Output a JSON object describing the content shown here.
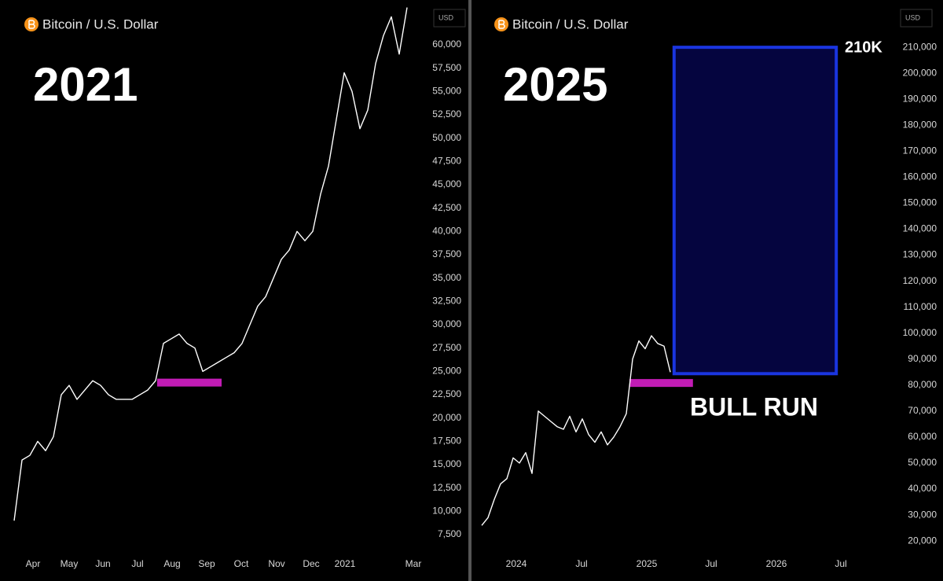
{
  "chart_data": [
    {
      "type": "line",
      "title": "Bitcoin / U.S. Dollar",
      "label": "2021",
      "currency": "USD",
      "series": [
        {
          "color": "#ffffff",
          "values": [
            9000,
            15500,
            16000,
            17500,
            16500,
            18000,
            22500,
            23500,
            22000,
            23000,
            24000,
            23500,
            22500,
            22000,
            22000,
            22000,
            22500,
            23000,
            24000,
            28000,
            28500,
            29000,
            28000,
            27500,
            25000,
            25500,
            26000,
            26500,
            27000,
            28000,
            30000,
            32000,
            33000,
            35000,
            37000,
            38000,
            40000,
            39000,
            40000,
            44000,
            47000,
            52000,
            57000,
            55000,
            51000,
            53000,
            58000,
            61000,
            63000,
            59000,
            64000
          ]
        }
      ],
      "xlim": [
        -1.8,
        52.2
      ],
      "xticks": [
        {
          "value": 2.4,
          "label": "Apr"
        },
        {
          "value": 7,
          "label": "May"
        },
        {
          "value": 11.3,
          "label": "Jun"
        },
        {
          "value": 15.7,
          "label": "Jul"
        },
        {
          "value": 20.1,
          "label": "Aug"
        },
        {
          "value": 24.5,
          "label": "Sep"
        },
        {
          "value": 28.9,
          "label": "Oct"
        },
        {
          "value": 33.4,
          "label": "Nov"
        },
        {
          "value": 37.8,
          "label": "Dec"
        },
        {
          "value": 42.1,
          "label": "2021"
        },
        {
          "value": 50.8,
          "label": "Mar"
        }
      ],
      "ylim": [
        5400,
        64800
      ],
      "yticks": [
        {
          "value": 7500,
          "label": "7,500"
        },
        {
          "value": 10000,
          "label": "10,000"
        },
        {
          "value": 12500,
          "label": "12,500"
        },
        {
          "value": 15000,
          "label": "15,000"
        },
        {
          "value": 17500,
          "label": "17,500"
        },
        {
          "value": 20000,
          "label": "20,000"
        },
        {
          "value": 22500,
          "label": "22,500"
        },
        {
          "value": 25000,
          "label": "25,000"
        },
        {
          "value": 27500,
          "label": "27,500"
        },
        {
          "value": 30000,
          "label": "30,000"
        },
        {
          "value": 32500,
          "label": "32,500"
        },
        {
          "value": 35000,
          "label": "35,000"
        },
        {
          "value": 37500,
          "label": "37,500"
        },
        {
          "value": 40000,
          "label": "40,000"
        },
        {
          "value": 42500,
          "label": "42,500"
        },
        {
          "value": 45000,
          "label": "45,000"
        },
        {
          "value": 47500,
          "label": "47,500"
        },
        {
          "value": 50000,
          "label": "50,000"
        },
        {
          "value": 52500,
          "label": "52,500"
        },
        {
          "value": 55000,
          "label": "55,000"
        },
        {
          "value": 57500,
          "label": "57,500"
        },
        {
          "value": 60000,
          "label": "60,000"
        }
      ],
      "markers": [
        {
          "x": [
            18.2,
            26.4
          ],
          "y": 23800,
          "color": "#c21cb5"
        }
      ]
    },
    {
      "type": "line",
      "title": "Bitcoin / U.S. Dollar",
      "label": "2025",
      "currency": "USD",
      "series": [
        {
          "color": "#ffffff",
          "values": [
            26000,
            29000,
            36000,
            42000,
            44000,
            52000,
            50000,
            54000,
            46000,
            70000,
            68000,
            66000,
            64000,
            63000,
            68000,
            62000,
            67000,
            61000,
            58000,
            62000,
            57000,
            60000,
            64000,
            69000,
            90000,
            97000,
            94000,
            99000,
            96000,
            95000,
            85000
          ]
        }
      ],
      "xlim": [
        -1.625,
        65.875
      ],
      "xticks": [
        {
          "value": 5.5,
          "label": "2024"
        },
        {
          "value": 15.875,
          "label": "Jul"
        },
        {
          "value": 26.25,
          "label": "2025"
        },
        {
          "value": 36.5,
          "label": "Jul"
        },
        {
          "value": 46.875,
          "label": "2026"
        },
        {
          "value": 57.125,
          "label": "Jul"
        }
      ],
      "ylim": [
        14900,
        228200
      ],
      "yticks": [
        {
          "value": 20000,
          "label": "20,000"
        },
        {
          "value": 30000,
          "label": "30,000"
        },
        {
          "value": 40000,
          "label": "40,000"
        },
        {
          "value": 50000,
          "label": "50,000"
        },
        {
          "value": 60000,
          "label": "60,000"
        },
        {
          "value": 70000,
          "label": "70,000"
        },
        {
          "value": 80000,
          "label": "80,000"
        },
        {
          "value": 90000,
          "label": "90,000"
        },
        {
          "value": 100000,
          "label": "100,000"
        },
        {
          "value": 110000,
          "label": "110,000"
        },
        {
          "value": 120000,
          "label": "120,000"
        },
        {
          "value": 130000,
          "label": "130,000"
        },
        {
          "value": 140000,
          "label": "140,000"
        },
        {
          "value": 150000,
          "label": "150,000"
        },
        {
          "value": 160000,
          "label": "160,000"
        },
        {
          "value": 170000,
          "label": "170,000"
        },
        {
          "value": 180000,
          "label": "180,000"
        },
        {
          "value": 190000,
          "label": "190,000"
        },
        {
          "value": 200000,
          "label": "200,000"
        },
        {
          "value": 210000,
          "label": "210,000"
        }
      ],
      "markers": [
        {
          "x": [
            23.5,
            33.6
          ],
          "y": 80800,
          "color": "#c21cb5"
        }
      ],
      "boxes": [
        {
          "x": [
            30.6,
            56.4
          ],
          "y": [
            84400,
            210000
          ],
          "color": "#1a35e0",
          "fill": "#05053f"
        }
      ],
      "annotations": [
        {
          "text": "210K"
        },
        {
          "text": "BULL RUN"
        }
      ]
    }
  ]
}
